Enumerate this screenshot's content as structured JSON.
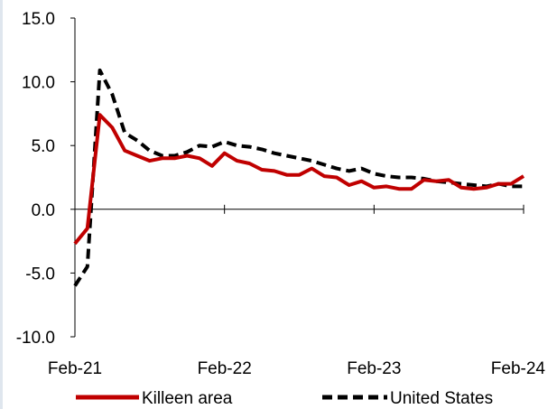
{
  "chart_data": {
    "type": "line",
    "title": "",
    "xlabel": "",
    "ylabel": "",
    "ylim": [
      -10,
      15
    ],
    "yticks": [
      -10,
      -5,
      0,
      5,
      10,
      15
    ],
    "ytick_labels": [
      "-10.0",
      "-5.0",
      "0.0",
      "5.0",
      "10.0",
      "15.0"
    ],
    "xlim": [
      0,
      36
    ],
    "xticks": [
      0,
      12,
      24,
      36
    ],
    "xtick_labels": [
      "Feb-21",
      "Feb-22",
      "Feb-23",
      "Feb-24"
    ],
    "x": [
      0,
      1,
      2,
      3,
      4,
      5,
      6,
      7,
      8,
      9,
      10,
      11,
      12,
      13,
      14,
      15,
      16,
      17,
      18,
      19,
      20,
      21,
      22,
      23,
      24,
      25,
      26,
      27,
      28,
      29,
      30,
      31,
      32,
      33,
      34,
      35,
      36
    ],
    "series": [
      {
        "name": "Killeen area",
        "color": "#c00000",
        "style": "solid",
        "values": [
          -2.7,
          -1.5,
          7.4,
          6.4,
          4.6,
          4.2,
          3.8,
          4.0,
          4.0,
          4.2,
          4.0,
          3.4,
          4.4,
          3.8,
          3.6,
          3.1,
          3.0,
          2.7,
          2.7,
          3.2,
          2.6,
          2.5,
          1.9,
          2.2,
          1.7,
          1.8,
          1.6,
          1.6,
          2.3,
          2.2,
          2.3,
          1.7,
          1.6,
          1.7,
          2.0,
          2.0,
          2.6
        ]
      },
      {
        "name": "United States",
        "color": "#000000",
        "style": "dashed",
        "values": [
          -6.0,
          -4.5,
          10.9,
          9.0,
          6.0,
          5.4,
          4.6,
          4.2,
          4.2,
          4.5,
          5.0,
          4.9,
          5.3,
          5.0,
          4.9,
          4.7,
          4.4,
          4.2,
          4.0,
          3.8,
          3.5,
          3.2,
          3.0,
          3.2,
          2.8,
          2.6,
          2.5,
          2.5,
          2.4,
          2.2,
          2.1,
          2.0,
          1.9,
          1.8,
          2.0,
          1.8,
          1.8
        ]
      }
    ],
    "grid": false,
    "legend": "bottom"
  }
}
